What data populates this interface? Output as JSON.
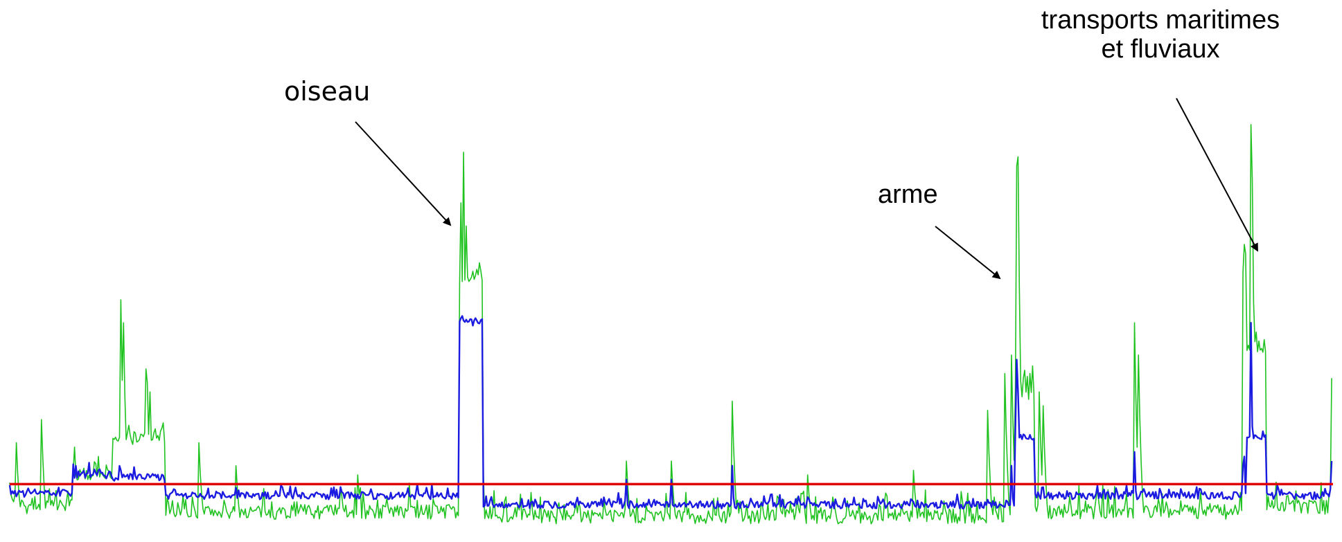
{
  "chart_data": {
    "type": "line",
    "grid": false,
    "xlim": [
      0,
      1000
    ],
    "ylim": [
      0,
      100
    ],
    "threshold": {
      "value": 10,
      "color": "#e00000"
    },
    "annotations": [
      {
        "id": "oiseau",
        "lines": [
          "oiseau"
        ],
        "x": 337,
        "y": 91
      },
      {
        "id": "arme",
        "lines": [
          "arme"
        ],
        "x": 753,
        "y": 79
      },
      {
        "id": "transports",
        "lines": [
          "transports maritimes",
          "et fluviaux"
        ],
        "x": 937,
        "y": 82
      }
    ],
    "series": [
      {
        "color": "#1fc21f",
        "generator": {
          "seed": 7,
          "min": 0.5,
          "segments": [
            [
              0,
              5,
              7
            ],
            [
              5,
              48,
              5
            ],
            [
              48,
              78,
              12
            ],
            [
              78,
              118,
              20
            ],
            [
              118,
              340,
              4
            ],
            [
              340,
              358,
              55
            ],
            [
              358,
              760,
              3
            ],
            [
              760,
              775,
              30
            ],
            [
              775,
              935,
              4
            ],
            [
              935,
              950,
              40
            ],
            [
              950,
              1000,
              5
            ]
          ],
          "spikes": [
            [
              5,
              19
            ],
            [
              24,
              24
            ],
            [
              53,
              11
            ],
            [
              67,
              16
            ],
            [
              84,
              50
            ],
            [
              86,
              45
            ],
            [
              103,
              35
            ],
            [
              104,
              32
            ],
            [
              106,
              30
            ],
            [
              110,
              22
            ],
            [
              143,
              19
            ],
            [
              171,
              14
            ],
            [
              263,
              12
            ],
            [
              340,
              26
            ],
            [
              341,
              71
            ],
            [
              343,
              82
            ],
            [
              345,
              66
            ],
            [
              349,
              48
            ],
            [
              353,
              48
            ],
            [
              355,
              58
            ],
            [
              466,
              15
            ],
            [
              500,
              15
            ],
            [
              546,
              28
            ],
            [
              603,
              12
            ],
            [
              683,
              13
            ],
            [
              739,
              26
            ],
            [
              752,
              34
            ],
            [
              757,
              38
            ],
            [
              761,
              79
            ],
            [
              762,
              81
            ],
            [
              766,
              33
            ],
            [
              778,
              30
            ],
            [
              781,
              27
            ],
            [
              850,
              45
            ],
            [
              853,
              38
            ],
            [
              932,
              56
            ],
            [
              933,
              62
            ],
            [
              934,
              60
            ],
            [
              938,
              88
            ],
            [
              939,
              76
            ],
            [
              999,
              33
            ]
          ],
          "decay": [
            0.65,
            0.4,
            0.2
          ]
        },
        "noise": 1.6,
        "jitter": 2.5
      },
      {
        "color": "#1a1ae0",
        "generator": {
          "seed": 3,
          "min": 3,
          "segments": [
            [
              0,
              5,
              8.5
            ],
            [
              5,
              48,
              8
            ],
            [
              48,
              78,
              12
            ],
            [
              78,
              118,
              11.5
            ],
            [
              118,
              340,
              7.5
            ],
            [
              340,
              358,
              45
            ],
            [
              358,
              760,
              5.5
            ],
            [
              760,
              775,
              20
            ],
            [
              775,
              935,
              7.5
            ],
            [
              935,
              950,
              20
            ],
            [
              950,
              1000,
              7.5
            ]
          ],
          "spikes": [
            [
              84,
              13
            ],
            [
              340,
              14
            ],
            [
              341,
              46
            ],
            [
              343,
              38
            ],
            [
              345,
              30
            ],
            [
              349,
              15
            ],
            [
              353,
              15
            ],
            [
              466,
              11
            ],
            [
              500,
              11
            ],
            [
              546,
              14
            ],
            [
              757,
              14
            ],
            [
              761,
              37
            ],
            [
              762,
              30
            ],
            [
              766,
              15
            ],
            [
              850,
              17
            ],
            [
              932,
              14
            ],
            [
              933,
              16
            ],
            [
              938,
              45
            ],
            [
              939,
              20
            ],
            [
              999,
              15
            ]
          ],
          "decay": [
            0.5,
            0.25
          ]
        },
        "noise": 0.8,
        "jitter": 1.0
      }
    ]
  }
}
